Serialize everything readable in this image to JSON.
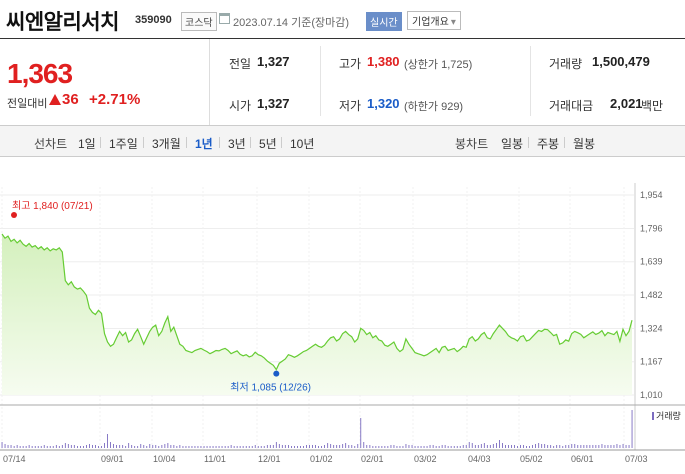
{
  "header": {
    "company": "씨엔알리서치",
    "code": "359090",
    "market": "코스닥",
    "date": "2023.07.14 기준(장마감)",
    "realtime_label": "실시간",
    "overview_label": "기업개요",
    "overview_arrow": "▾"
  },
  "quote": {
    "price": "1,363",
    "change_label": "전일대비",
    "change_value": "36",
    "change_pct": "+2.71%",
    "direction": "up",
    "up_color": "#e02020",
    "down_color": "#1a5cc8"
  },
  "stats": {
    "prev_close": {
      "label": "전일",
      "value": "1,327"
    },
    "open": {
      "label": "시가",
      "value": "1,327"
    },
    "high": {
      "label": "고가",
      "value": "1,380",
      "sub": "(상한가 1,725)"
    },
    "low": {
      "label": "저가",
      "value": "1,320",
      "sub": "(하한가 929)"
    },
    "volume": {
      "label": "거래량",
      "value": "1,500,479"
    },
    "amount": {
      "label": "거래대금",
      "value": "2,021",
      "unit": "백만"
    }
  },
  "periods": {
    "line_label": "선차트",
    "items": [
      "1일",
      "1주일",
      "3개월",
      "1년",
      "3년",
      "5년",
      "10년"
    ],
    "selected": "1년",
    "candle_label": "봉차트",
    "candle_items": [
      "일봉",
      "주봉",
      "월봉"
    ]
  },
  "chart_data": {
    "type": "area",
    "title": "",
    "y_ticks": [
      1954,
      1796,
      1639,
      1482,
      1324,
      1167,
      1010
    ],
    "ylim": [
      1010,
      1954
    ],
    "x_tick_labels": [
      "07/14",
      "09/01",
      "10/04",
      "11/01",
      "12/01",
      "01/02",
      "02/01",
      "03/02",
      "04/03",
      "05/02",
      "06/01",
      "07/03"
    ],
    "max_annotation": {
      "label": "최고 1,840 (07/21)",
      "value": 1840
    },
    "min_annotation": {
      "label": "최저 1,085 (12/26)",
      "value": 1085
    },
    "price_series": [
      1770,
      1750,
      1760,
      1735,
      1745,
      1728,
      1740,
      1722,
      1712,
      1725,
      1708,
      1715,
      1700,
      1710,
      1695,
      1705,
      1690,
      1700,
      1695,
      1705,
      1685,
      1550,
      1530,
      1545,
      1520,
      1510,
      1515,
      1500,
      1480,
      1420,
      1400,
      1390,
      1410,
      1395,
      1300,
      1260,
      1240,
      1250,
      1280,
      1310,
      1290,
      1305,
      1260,
      1270,
      1300,
      1320,
      1285,
      1250,
      1280,
      1310,
      1330,
      1340,
      1290,
      1310,
      1350,
      1380,
      1310,
      1330,
      1290,
      1250,
      1240,
      1220,
      1215,
      1210,
      1220,
      1225,
      1230,
      1222,
      1215,
      1205,
      1212,
      1220,
      1218,
      1225,
      1230,
      1220,
      1205,
      1212,
      1218,
      1202,
      1195,
      1200,
      1190,
      1195,
      1212,
      1200,
      1195,
      1185,
      1170,
      1160,
      1150,
      1130,
      1160,
      1170,
      1180,
      1200,
      1195,
      1188,
      1195,
      1205,
      1215,
      1220,
      1230,
      1240,
      1250,
      1240,
      1235,
      1245,
      1265,
      1280,
      1285,
      1265,
      1275,
      1300,
      1310,
      1295,
      1285,
      1260,
      1275,
      1325,
      1315,
      1295,
      1305,
      1280,
      1290,
      1270,
      1265,
      1245,
      1240,
      1250,
      1260,
      1230,
      1215,
      1225,
      1275,
      1250,
      1230,
      1210,
      1205,
      1200,
      1195,
      1200,
      1210,
      1220,
      1230,
      1210,
      1235,
      1240,
      1220,
      1225,
      1230,
      1215,
      1225,
      1240,
      1235,
      1275,
      1285,
      1265,
      1275,
      1295,
      1305,
      1280,
      1275,
      1300,
      1320,
      1340,
      1325,
      1310,
      1290,
      1280,
      1275,
      1265,
      1285,
      1290,
      1265,
      1270,
      1285,
      1300,
      1315,
      1310,
      1320,
      1318,
      1305,
      1290,
      1296,
      1250,
      1256,
      1270,
      1264,
      1300,
      1310,
      1304,
      1296,
      1280,
      1290,
      1299,
      1308,
      1296,
      1302,
      1314,
      1290,
      1305,
      1300,
      1295,
      1310,
      1263,
      1320,
      1290,
      1310,
      1363
    ],
    "volume_series": [
      6,
      4,
      3,
      3,
      2,
      3,
      2,
      2,
      2,
      3,
      2,
      2,
      2,
      2,
      3,
      2,
      2,
      2,
      3,
      2,
      3,
      5,
      4,
      3,
      3,
      2,
      2,
      2,
      3,
      4,
      3,
      3,
      2,
      2,
      5,
      14,
      6,
      4,
      3,
      3,
      3,
      2,
      5,
      3,
      2,
      2,
      4,
      3,
      2,
      4,
      3,
      3,
      2,
      3,
      4,
      5,
      3,
      3,
      2,
      3,
      2,
      2,
      2,
      2,
      2,
      2,
      2,
      2,
      2,
      2,
      2,
      2,
      2,
      2,
      2,
      2,
      3,
      2,
      2,
      2,
      2,
      2,
      2,
      2,
      3,
      2,
      2,
      2,
      3,
      3,
      3,
      6,
      4,
      3,
      3,
      3,
      2,
      2,
      2,
      2,
      2,
      3,
      3,
      3,
      3,
      2,
      2,
      3,
      5,
      4,
      3,
      3,
      3,
      4,
      5,
      3,
      3,
      2,
      4,
      30,
      6,
      3,
      3,
      2,
      2,
      2,
      2,
      2,
      2,
      3,
      3,
      2,
      2,
      2,
      4,
      3,
      3,
      2,
      2,
      2,
      2,
      2,
      3,
      3,
      2,
      2,
      3,
      3,
      2,
      2,
      2,
      2,
      2,
      3,
      3,
      6,
      5,
      3,
      3,
      4,
      5,
      3,
      3,
      4,
      5,
      8,
      5,
      3,
      3,
      3,
      3,
      2,
      3,
      3,
      2,
      2,
      3,
      4,
      5,
      4,
      4,
      3,
      3,
      2,
      3,
      3,
      2,
      3,
      3,
      4,
      4,
      3,
      3,
      3,
      3,
      3,
      3,
      3,
      3,
      4,
      3,
      3,
      3,
      3,
      4,
      3,
      4,
      3,
      3,
      38
    ],
    "volume_label": "거래량",
    "line_color": "#66cc33",
    "fill_color": "#e6f7d8"
  }
}
